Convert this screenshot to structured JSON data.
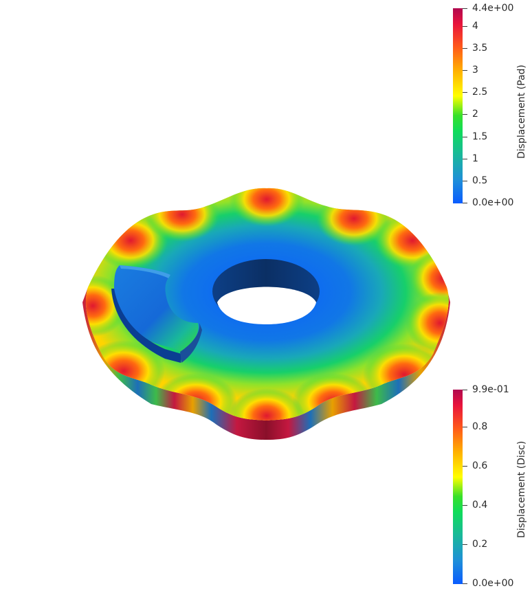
{
  "scene": {
    "title": "",
    "object": "brake-disc-and-pad-displacement-plot"
  },
  "colorbars": [
    {
      "title": "Displacement (Pad)",
      "min_label": "0.0e+00",
      "max_label": "4.4e+00",
      "tick_labels": [
        "4",
        "3.5",
        "3",
        "2.5",
        "2",
        "1.5",
        "1",
        "0.5"
      ],
      "tick_values": [
        4,
        3.5,
        3,
        2.5,
        2,
        1.5,
        1,
        0.5
      ],
      "range": [
        0,
        4.4
      ]
    },
    {
      "title": "Displacement (Disc)",
      "min_label": "0.0e+00",
      "max_label": "9.9e-01",
      "tick_labels": [
        "0.8",
        "0.6",
        "0.4",
        "0.2"
      ],
      "tick_values": [
        0.8,
        0.6,
        0.4,
        0.2
      ],
      "range": [
        0,
        0.99
      ]
    }
  ],
  "colormap": {
    "low": "#0a5cff",
    "mid_low": "#19b89a",
    "mid": "#37e02a",
    "mid_high": "#ffff00",
    "high": "#ff5a1a",
    "max": "#b0094f"
  }
}
